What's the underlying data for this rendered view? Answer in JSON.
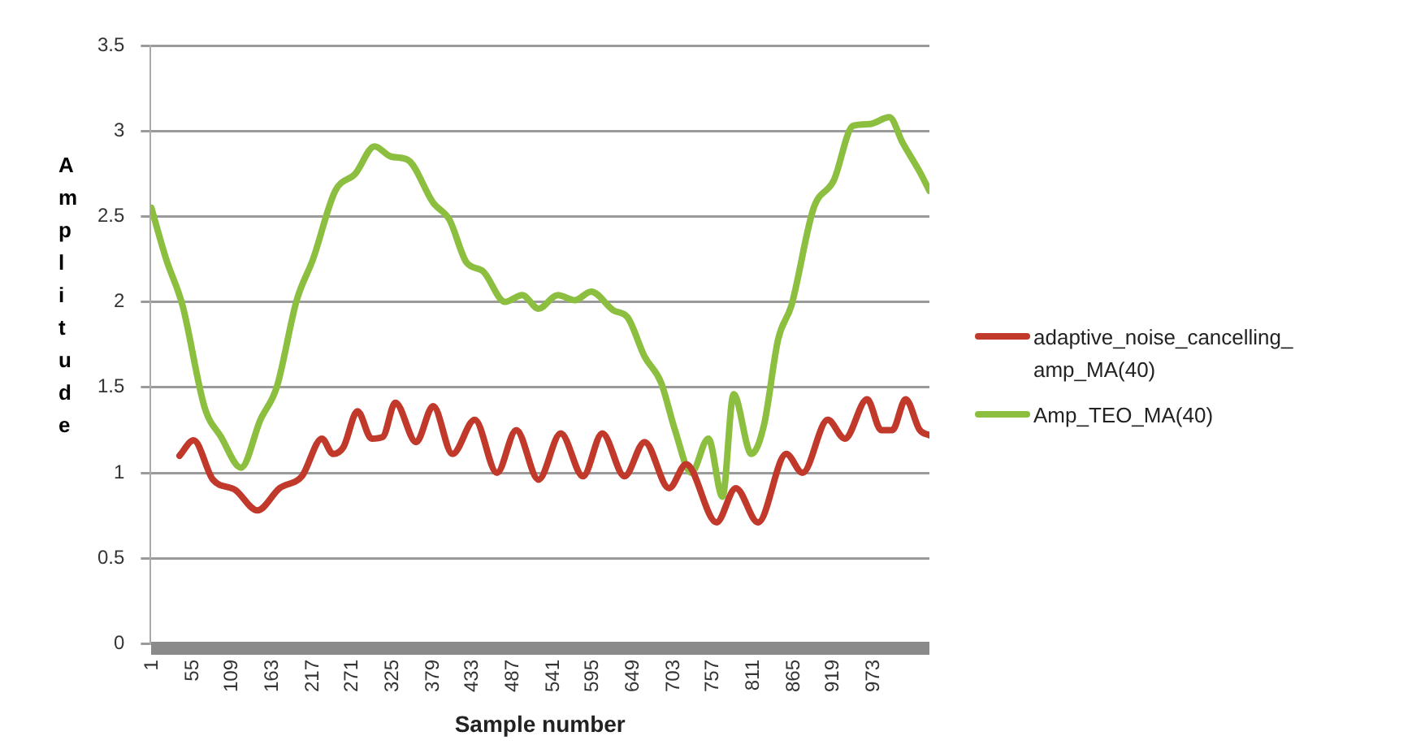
{
  "chart_data": {
    "type": "line",
    "xlabel": "Sample number",
    "ylabel": "Amplitude",
    "xlim": [
      0,
      1050
    ],
    "xticks": [
      1,
      55,
      109,
      163,
      217,
      271,
      325,
      379,
      433,
      487,
      541,
      595,
      649,
      703,
      757,
      811,
      865,
      919,
      973
    ],
    "ylim": [
      0,
      3.5
    ],
    "yticks": [
      0,
      0.5,
      1,
      1.5,
      2,
      2.5,
      3,
      3.5
    ],
    "grid": "y",
    "legend": "right",
    "marker": "none",
    "line_style": "solid",
    "series": [
      {
        "name": "adaptive_noise_cancelling_amp_MA(40)",
        "color": "#c0392b",
        "x": [
          39,
          58,
          84,
          114,
          144,
          174,
          204,
          231,
          246,
          260,
          279,
          298,
          313,
          330,
          358,
          381,
          407,
          437,
          467,
          493,
          523,
          553,
          583,
          609,
          639,
          666,
          699,
          722,
          763,
          789,
          819,
          857,
          879,
          913,
          936,
          966,
          985,
          1000,
          1018,
          1037,
          1050
        ],
        "values": [
          1.1,
          1.19,
          0.96,
          0.9,
          0.78,
          0.91,
          0.98,
          1.2,
          1.11,
          1.15,
          1.36,
          1.2,
          1.21,
          1.41,
          1.18,
          1.39,
          1.11,
          1.31,
          1.0,
          1.25,
          0.96,
          1.23,
          0.98,
          1.23,
          0.98,
          1.18,
          0.91,
          1.05,
          0.71,
          0.91,
          0.71,
          1.11,
          1.0,
          1.31,
          1.2,
          1.43,
          1.25,
          1.25,
          1.43,
          1.25,
          1.22
        ]
      },
      {
        "name": "Amp_TEO_MA(40)",
        "color": "#8cbf3f",
        "x": [
          1,
          21,
          43,
          73,
          95,
          122,
          148,
          170,
          197,
          219,
          249,
          276,
          302,
          324,
          347,
          381,
          403,
          426,
          448,
          478,
          501,
          523,
          549,
          572,
          594,
          624,
          643,
          666,
          688,
          707,
          729,
          752,
          771,
          786,
          810,
          827,
          846,
          864,
          894,
          921,
          947,
          969,
          996,
          1014,
          1037,
          1050
        ],
        "values": [
          2.55,
          2.25,
          1.98,
          1.38,
          1.21,
          1.03,
          1.31,
          1.5,
          2.01,
          2.25,
          2.65,
          2.75,
          2.91,
          2.85,
          2.83,
          2.58,
          2.48,
          2.23,
          2.18,
          2.0,
          2.04,
          1.96,
          2.04,
          2.01,
          2.06,
          1.95,
          1.91,
          1.68,
          1.53,
          1.25,
          1.0,
          1.2,
          0.86,
          1.46,
          1.11,
          1.28,
          1.78,
          1.98,
          2.55,
          2.71,
          3.03,
          3.04,
          3.08,
          2.93,
          2.76,
          2.65
        ]
      }
    ]
  }
}
